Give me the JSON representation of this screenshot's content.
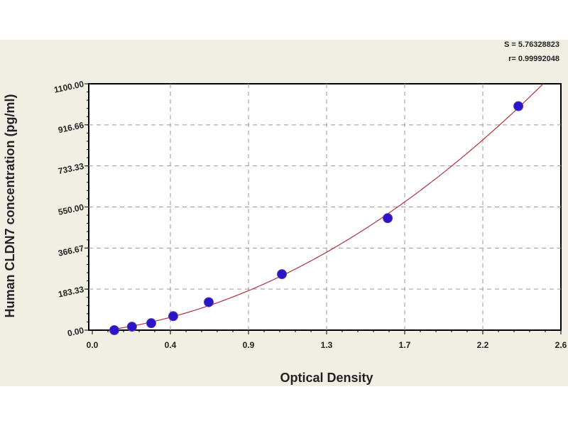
{
  "chart_data": {
    "type": "scatter",
    "xlabel": "Optical Density",
    "ylabel": "Human CLDN7 concentration (pg/ml)",
    "xlim": [
      0,
      2.6
    ],
    "ylim": [
      0,
      1100
    ],
    "x_ticks": [
      "0.0",
      "0.4",
      "0.9",
      "1.3",
      "1.7",
      "2.2",
      "2.6"
    ],
    "y_ticks": [
      "0.00",
      "183.33",
      "366.67",
      "550.00",
      "733.33",
      "916.66",
      "1100.00"
    ],
    "grid": true,
    "annotations": [
      "S = 5.76328823",
      "r= 0.99992048"
    ],
    "points": {
      "x": [
        0.122,
        0.22,
        0.327,
        0.449,
        0.646,
        1.052,
        1.639,
        2.364
      ],
      "y": [
        0,
        15.6,
        31.25,
        62.5,
        125,
        250,
        500,
        1000
      ]
    },
    "fit_curve": true,
    "colors": {
      "points": "#2a16c8",
      "curve": "#b0303a",
      "background": "#f1efe4"
    }
  }
}
